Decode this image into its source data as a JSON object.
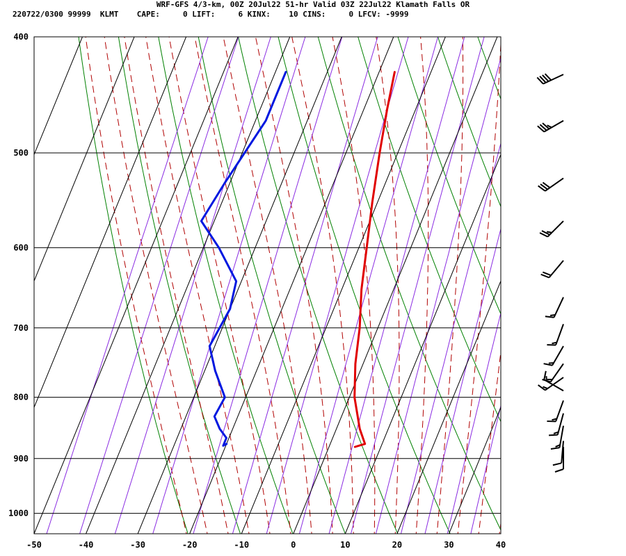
{
  "header": {
    "line1": "WRF-GFS 4/3-km, 00Z 20Jul22 51-hr Valid 03Z 22Jul22 Klamath Falls OR",
    "line2": "220722/0300 99999  KLMT    CAPE:     0 LIFT:     6 KINX:    10 CINS:     0 LFCV: -9999"
  },
  "chart_data": {
    "type": "skew-t log-p sounding",
    "title": "WRF-GFS 4/3-km, 00Z 20Jul22 51-hr Valid 03Z 22Jul22 Klamath Falls OR",
    "station": "KLMT",
    "indices": {
      "CAPE": 0,
      "LIFT": 6,
      "KINX": 10,
      "CINS": 0,
      "LFCV": -9999
    },
    "xlim": [
      -50,
      40
    ],
    "ylim": [
      1040,
      400
    ],
    "x_ticks": [
      "-50",
      "-40",
      "-30",
      "-20",
      "-10",
      "0",
      "10",
      "20",
      "30",
      "40"
    ],
    "y_ticks": [
      "400",
      "500",
      "600",
      "700",
      "800",
      "900",
      "1000"
    ],
    "y_scale": "log",
    "grid": true,
    "series": [
      {
        "color": "#e00000",
        "points": [
          {
            "p": 428,
            "t": -17.0
          },
          {
            "p": 460,
            "t": -15.5
          },
          {
            "p": 500,
            "t": -13.5
          },
          {
            "p": 550,
            "t": -11.0
          },
          {
            "p": 600,
            "t": -8.5
          },
          {
            "p": 650,
            "t": -6.2
          },
          {
            "p": 700,
            "t": -3.5
          },
          {
            "p": 750,
            "t": -1.5
          },
          {
            "p": 800,
            "t": 1.0
          },
          {
            "p": 850,
            "t": 4.5
          },
          {
            "p": 875,
            "t": 6.7
          },
          {
            "p": 880,
            "t": 5.0
          }
        ]
      },
      {
        "color": "#0018e0",
        "points": [
          {
            "p": 428,
            "t": -38.0
          },
          {
            "p": 470,
            "t": -38.0
          },
          {
            "p": 530,
            "t": -41.0
          },
          {
            "p": 570,
            "t": -42.5
          },
          {
            "p": 600,
            "t": -37.0
          },
          {
            "p": 640,
            "t": -31.0
          },
          {
            "p": 675,
            "t": -30.0
          },
          {
            "p": 725,
            "t": -31.0
          },
          {
            "p": 760,
            "t": -28.0
          },
          {
            "p": 800,
            "t": -24.0
          },
          {
            "p": 830,
            "t": -24.5
          },
          {
            "p": 850,
            "t": -22.5
          },
          {
            "p": 865,
            "t": -20.5
          },
          {
            "p": 878,
            "t": -20.5
          },
          {
            "p": 875,
            "t": -20.0
          }
        ]
      }
    ],
    "wind_barbs": [
      {
        "p": 430,
        "dir": 245,
        "speed": 40
      },
      {
        "p": 470,
        "dir": 240,
        "speed": 35
      },
      {
        "p": 525,
        "dir": 235,
        "speed": 30
      },
      {
        "p": 570,
        "dir": 225,
        "speed": 25
      },
      {
        "p": 615,
        "dir": 220,
        "speed": 20
      },
      {
        "p": 660,
        "dir": 205,
        "speed": 15
      },
      {
        "p": 695,
        "dir": 200,
        "speed": 15
      },
      {
        "p": 725,
        "dir": 210,
        "speed": 15
      },
      {
        "p": 750,
        "dir": 215,
        "speed": 15
      },
      {
        "p": 770,
        "dir": 235,
        "speed": 15
      },
      {
        "p": 790,
        "dir": 300,
        "speed": 15
      },
      {
        "p": 805,
        "dir": 200,
        "speed": 15
      },
      {
        "p": 825,
        "dir": 195,
        "speed": 15
      },
      {
        "p": 845,
        "dir": 190,
        "speed": 15
      },
      {
        "p": 870,
        "dir": 185,
        "speed": 10
      },
      {
        "p": 880,
        "dir": 180,
        "speed": 10
      }
    ]
  },
  "colors": {
    "temperature": "#e00000",
    "dewpoint": "#0018e0",
    "isotherm_grid": "#000000",
    "dry_adiabat": "#008000",
    "moist_adiabat": "#b00000",
    "mixing_ratio": "#8a2be2"
  }
}
